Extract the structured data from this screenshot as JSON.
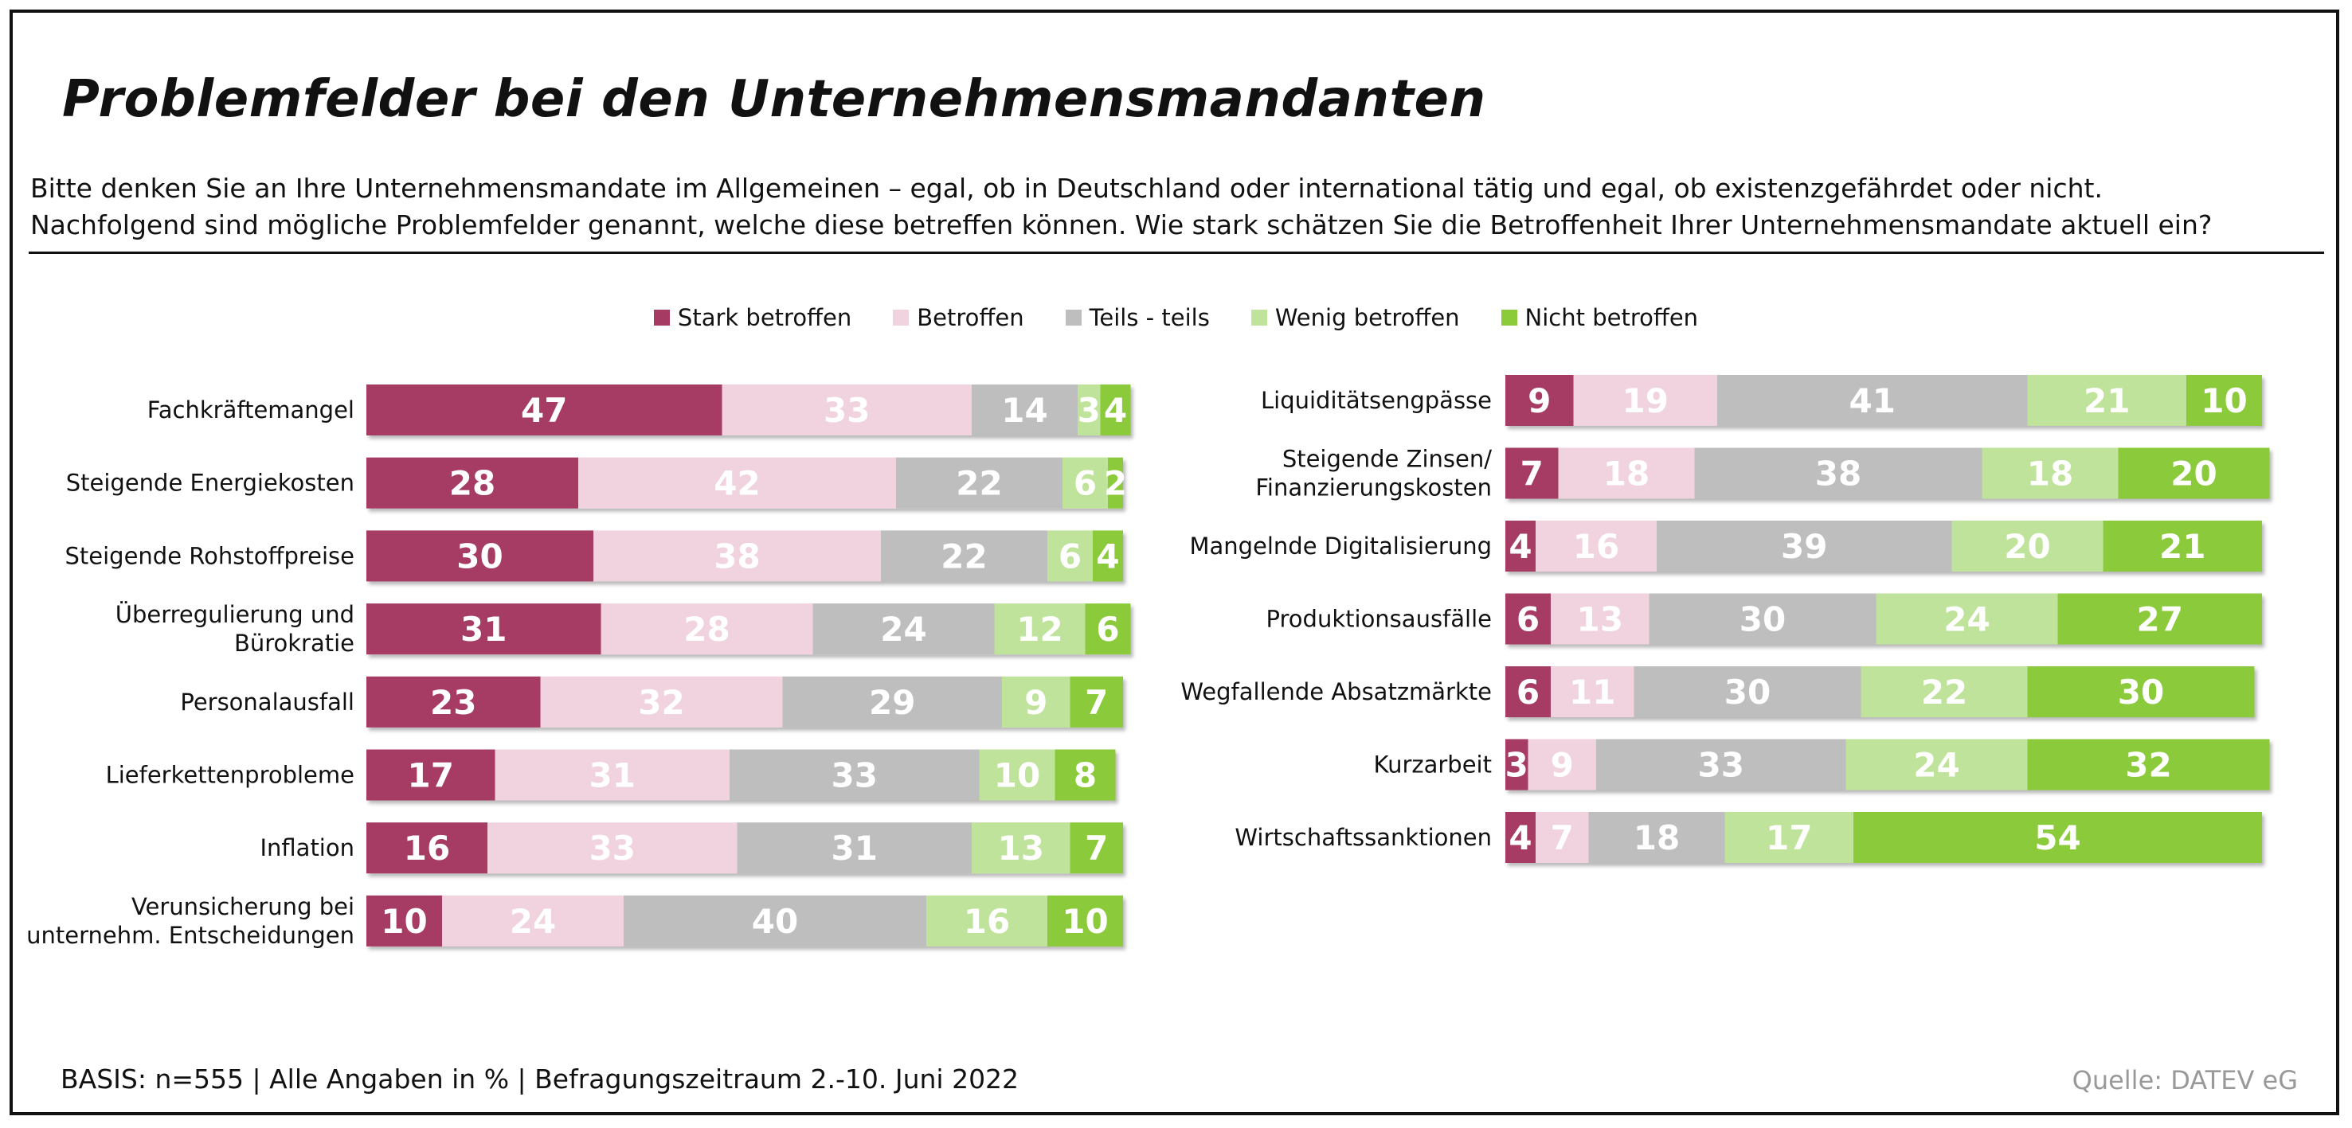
{
  "header": {
    "title": "Problemfelder bei den Unternehmensmandanten",
    "question_line1": "Bitte denken Sie an Ihre Unternehmensmandate im Allgemeinen – egal, ob in Deutschland oder international tätig und egal, ob existenzgefährdet oder nicht.",
    "question_line2": "Nachfolgend sind mögliche Problemfelder genannt, welche diese betreffen können. Wie stark schätzen Sie die Betroffenheit Ihrer Unternehmensmandate aktuell ein?"
  },
  "footer": {
    "basis": "BASIS: n=555 | Alle Angaben in % | Befragungszeitraum 2.-10. Juni 2022",
    "source": "Quelle: DATEV eG"
  },
  "chart_data": {
    "type": "bar",
    "orientation": "horizontal",
    "stacked": true,
    "unit": "%",
    "legend_placement": "top-center",
    "series": [
      {
        "name": "Stark betroffen",
        "color": "#A63A63"
      },
      {
        "name": "Betroffen",
        "color": "#F0D3DF"
      },
      {
        "name": "Teils - teils",
        "color": "#BEBEBE"
      },
      {
        "name": "Wenig betroffen",
        "color": "#BFE39A"
      },
      {
        "name": "Nicht betroffen",
        "color": "#8BCB3A"
      }
    ],
    "panels": [
      {
        "name": "left",
        "rows": [
          {
            "label": [
              "Fachkräftemangel"
            ],
            "values": [
              47,
              33,
              14,
              3,
              4
            ]
          },
          {
            "label": [
              "Steigende Energiekosten"
            ],
            "values": [
              28,
              42,
              22,
              6,
              2
            ]
          },
          {
            "label": [
              "Steigende Rohstoffpreise"
            ],
            "values": [
              30,
              38,
              22,
              6,
              4
            ]
          },
          {
            "label": [
              "Überregulierung und",
              "Bürokratie"
            ],
            "values": [
              31,
              28,
              24,
              12,
              6
            ]
          },
          {
            "label": [
              "Personalausfall"
            ],
            "values": [
              23,
              32,
              29,
              9,
              7
            ]
          },
          {
            "label": [
              "Lieferkettenprobleme"
            ],
            "values": [
              17,
              31,
              33,
              10,
              8
            ]
          },
          {
            "label": [
              "Inflation"
            ],
            "values": [
              16,
              33,
              31,
              13,
              7
            ]
          },
          {
            "label": [
              "Verunsicherung bei",
              "unternehm. Entscheidungen"
            ],
            "values": [
              10,
              24,
              40,
              16,
              10
            ]
          }
        ]
      },
      {
        "name": "right",
        "rows": [
          {
            "label": [
              "Liquiditätsengpässe"
            ],
            "values": [
              9,
              19,
              41,
              21,
              10
            ]
          },
          {
            "label": [
              "Steigende Zinsen/",
              "Finanzierungskosten"
            ],
            "values": [
              7,
              18,
              38,
              18,
              20
            ]
          },
          {
            "label": [
              "Mangelnde Digitalisierung"
            ],
            "values": [
              4,
              16,
              39,
              20,
              21
            ]
          },
          {
            "label": [
              "Produktionsausfälle"
            ],
            "values": [
              6,
              13,
              30,
              24,
              27
            ]
          },
          {
            "label": [
              "Wegfallende Absatzmärkte"
            ],
            "values": [
              6,
              11,
              30,
              22,
              30
            ]
          },
          {
            "label": [
              "Kurzarbeit"
            ],
            "values": [
              3,
              9,
              33,
              24,
              32
            ]
          },
          {
            "label": [
              "Wirtschaftssanktionen"
            ],
            "values": [
              4,
              7,
              18,
              17,
              54
            ]
          }
        ]
      }
    ]
  }
}
